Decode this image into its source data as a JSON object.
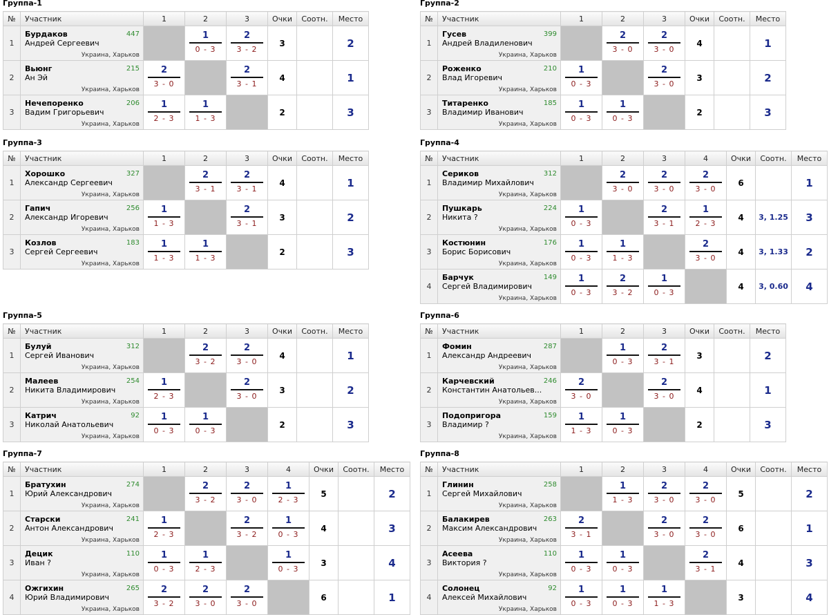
{
  "header": {
    "num": "№",
    "participant": "Участник",
    "points": "Очки",
    "ratio": "Соотн.",
    "place": "Место"
  },
  "groups": [
    {
      "title": "Группа-1",
      "cols": [
        "1",
        "2",
        "3"
      ],
      "players": [
        {
          "no": "1",
          "last": "Бурдаков",
          "first": "Андрей Сергеевич",
          "rating": "447",
          "city": "Украина, Харьков",
          "scores": [
            null,
            [
              "1",
              "0 - 3"
            ],
            [
              "2",
              "3 - 2"
            ]
          ],
          "points": "3",
          "tie": "",
          "place": "2"
        },
        {
          "no": "2",
          "last": "Вьюнг",
          "first": "Ан Эй",
          "rating": "215",
          "city": "Украина, Харьков",
          "scores": [
            [
              "2",
              "3 - 0"
            ],
            null,
            [
              "2",
              "3 - 1"
            ]
          ],
          "points": "4",
          "tie": "",
          "place": "1"
        },
        {
          "no": "3",
          "last": "Нечепоренко",
          "first": "Вадим Григорьевич",
          "rating": "206",
          "city": "Украина, Харьков",
          "scores": [
            [
              "1",
              "2 - 3"
            ],
            [
              "1",
              "1 - 3"
            ],
            null
          ],
          "points": "2",
          "tie": "",
          "place": "3"
        }
      ]
    },
    {
      "title": "Группа-2",
      "cols": [
        "1",
        "2",
        "3"
      ],
      "players": [
        {
          "no": "1",
          "last": "Гусев",
          "first": "Андрей Владиленович",
          "rating": "399",
          "city": "Украина, Харьков",
          "scores": [
            null,
            [
              "2",
              "3 - 0"
            ],
            [
              "2",
              "3 - 0"
            ]
          ],
          "points": "4",
          "tie": "",
          "place": "1"
        },
        {
          "no": "2",
          "last": "Роженко",
          "first": "Влад Игоревич",
          "rating": "210",
          "city": "Украина, Харьков",
          "scores": [
            [
              "1",
              "0 - 3"
            ],
            null,
            [
              "2",
              "3 - 0"
            ]
          ],
          "points": "3",
          "tie": "",
          "place": "2"
        },
        {
          "no": "3",
          "last": "Титаренко",
          "first": "Владимир Иванович",
          "rating": "185",
          "city": "Украина, Харьков",
          "scores": [
            [
              "1",
              "0 - 3"
            ],
            [
              "1",
              "0 - 3"
            ],
            null
          ],
          "points": "2",
          "tie": "",
          "place": "3"
        }
      ]
    },
    {
      "title": "Группа-3",
      "cols": [
        "1",
        "2",
        "3"
      ],
      "players": [
        {
          "no": "1",
          "last": "Хорошко",
          "first": "Александр Сергеевич",
          "rating": "327",
          "city": "Украина, Харьков",
          "scores": [
            null,
            [
              "2",
              "3 - 1"
            ],
            [
              "2",
              "3 - 1"
            ]
          ],
          "points": "4",
          "tie": "",
          "place": "1"
        },
        {
          "no": "2",
          "last": "Гапич",
          "first": "Александр Игоревич",
          "rating": "256",
          "city": "Украина, Харьков",
          "scores": [
            [
              "1",
              "1 - 3"
            ],
            null,
            [
              "2",
              "3 - 1"
            ]
          ],
          "points": "3",
          "tie": "",
          "place": "2"
        },
        {
          "no": "3",
          "last": "Козлов",
          "first": "Сергей Сергеевич",
          "rating": "183",
          "city": "Украина, Харьков",
          "scores": [
            [
              "1",
              "1 - 3"
            ],
            [
              "1",
              "1 - 3"
            ],
            null
          ],
          "points": "2",
          "tie": "",
          "place": "3"
        }
      ]
    },
    {
      "title": "Группа-4",
      "cols": [
        "1",
        "2",
        "3",
        "4"
      ],
      "players": [
        {
          "no": "1",
          "last": "Сериков",
          "first": "Владимир Михайлович",
          "rating": "312",
          "city": "Украина, Харьков",
          "scores": [
            null,
            [
              "2",
              "3 - 0"
            ],
            [
              "2",
              "3 - 0"
            ],
            [
              "2",
              "3 - 0"
            ]
          ],
          "points": "6",
          "tie": "",
          "place": "1"
        },
        {
          "no": "2",
          "last": "Пушкарь",
          "first": "Никита ?",
          "rating": "224",
          "city": "Украина, Харьков",
          "scores": [
            [
              "1",
              "0 - 3"
            ],
            null,
            [
              "2",
              "3 - 1"
            ],
            [
              "1",
              "2 - 3"
            ]
          ],
          "points": "4",
          "tie": "3, 1.25",
          "place": "3"
        },
        {
          "no": "3",
          "last": "Костюнин",
          "first": "Борис Борисович",
          "rating": "176",
          "city": "Украина, Харьков",
          "scores": [
            [
              "1",
              "0 - 3"
            ],
            [
              "1",
              "1 - 3"
            ],
            null,
            [
              "2",
              "3 - 0"
            ]
          ],
          "points": "4",
          "tie": "3, 1.33",
          "place": "2"
        },
        {
          "no": "4",
          "last": "Барчук",
          "first": "Сергей Владимирович",
          "rating": "149",
          "city": "Украина, Харьков",
          "scores": [
            [
              "1",
              "0 - 3"
            ],
            [
              "2",
              "3 - 2"
            ],
            [
              "1",
              "0 - 3"
            ],
            null
          ],
          "points": "4",
          "tie": "3, 0.60",
          "place": "4"
        }
      ]
    },
    {
      "title": "Группа-5",
      "cols": [
        "1",
        "2",
        "3"
      ],
      "players": [
        {
          "no": "1",
          "last": "Булуй",
          "first": "Сергей Иванович",
          "rating": "312",
          "city": "Украина, Харьков",
          "scores": [
            null,
            [
              "2",
              "3 - 2"
            ],
            [
              "2",
              "3 - 0"
            ]
          ],
          "points": "4",
          "tie": "",
          "place": "1"
        },
        {
          "no": "2",
          "last": "Малеев",
          "first": "Никита Владимирович",
          "rating": "254",
          "city": "Украина, Харьков",
          "scores": [
            [
              "1",
              "2 - 3"
            ],
            null,
            [
              "2",
              "3 - 0"
            ]
          ],
          "points": "3",
          "tie": "",
          "place": "2"
        },
        {
          "no": "3",
          "last": "Катрич",
          "first": "Николай Анатольевич",
          "rating": "92",
          "city": "Украина, Харьков",
          "scores": [
            [
              "1",
              "0 - 3"
            ],
            [
              "1",
              "0 - 3"
            ],
            null
          ],
          "points": "2",
          "tie": "",
          "place": "3"
        }
      ]
    },
    {
      "title": "Группа-6",
      "cols": [
        "1",
        "2",
        "3"
      ],
      "players": [
        {
          "no": "1",
          "last": "Фомин",
          "first": "Александр Андреевич",
          "rating": "287",
          "city": "Украина, Харьков",
          "scores": [
            null,
            [
              "1",
              "0 - 3"
            ],
            [
              "2",
              "3 - 1"
            ]
          ],
          "points": "3",
          "tie": "",
          "place": "2"
        },
        {
          "no": "2",
          "last": "Карчевский",
          "first": "Константин Анатольев...",
          "rating": "246",
          "city": "Украина, Харьков",
          "scores": [
            [
              "2",
              "3 - 0"
            ],
            null,
            [
              "2",
              "3 - 0"
            ]
          ],
          "points": "4",
          "tie": "",
          "place": "1"
        },
        {
          "no": "3",
          "last": "Подопригора",
          "first": "Владимир ?",
          "rating": "159",
          "city": "Украина, Харьков",
          "scores": [
            [
              "1",
              "1 - 3"
            ],
            [
              "1",
              "0 - 3"
            ],
            null
          ],
          "points": "2",
          "tie": "",
          "place": "3"
        }
      ]
    },
    {
      "title": "Группа-7",
      "cols": [
        "1",
        "2",
        "3",
        "4"
      ],
      "players": [
        {
          "no": "1",
          "last": "Братухин",
          "first": "Юрий Александрович",
          "rating": "274",
          "city": "Украина, Харьков",
          "scores": [
            null,
            [
              "2",
              "3 - 2"
            ],
            [
              "2",
              "3 - 0"
            ],
            [
              "1",
              "2 - 3"
            ]
          ],
          "points": "5",
          "tie": "",
          "place": "2"
        },
        {
          "no": "2",
          "last": "Старски",
          "first": "Антон Александрович",
          "rating": "241",
          "city": "Украина, Харьков",
          "scores": [
            [
              "1",
              "2 - 3"
            ],
            null,
            [
              "2",
              "3 - 2"
            ],
            [
              "1",
              "0 - 3"
            ]
          ],
          "points": "4",
          "tie": "",
          "place": "3"
        },
        {
          "no": "3",
          "last": "Децик",
          "first": "Иван ?",
          "rating": "110",
          "city": "Украина, Харьков",
          "scores": [
            [
              "1",
              "0 - 3"
            ],
            [
              "1",
              "2 - 3"
            ],
            null,
            [
              "1",
              "0 - 3"
            ]
          ],
          "points": "3",
          "tie": "",
          "place": "4"
        },
        {
          "no": "4",
          "last": "Ожгихин",
          "first": "Юрий Владимирович",
          "rating": "265",
          "city": "Украина, Харьков",
          "scores": [
            [
              "2",
              "3 - 2"
            ],
            [
              "2",
              "3 - 0"
            ],
            [
              "2",
              "3 - 0"
            ],
            null
          ],
          "points": "6",
          "tie": "",
          "place": "1"
        }
      ]
    },
    {
      "title": "Группа-8",
      "cols": [
        "1",
        "2",
        "3",
        "4"
      ],
      "players": [
        {
          "no": "1",
          "last": "Глинин",
          "first": "Сергей Михайлович",
          "rating": "258",
          "city": "Украина, Харьков",
          "scores": [
            null,
            [
              "1",
              "1 - 3"
            ],
            [
              "2",
              "3 - 0"
            ],
            [
              "2",
              "3 - 0"
            ]
          ],
          "points": "5",
          "tie": "",
          "place": "2"
        },
        {
          "no": "2",
          "last": "Балакирев",
          "first": "Максим Александрович",
          "rating": "263",
          "city": "Украина, Харьков",
          "scores": [
            [
              "2",
              "3 - 1"
            ],
            null,
            [
              "2",
              "3 - 0"
            ],
            [
              "2",
              "3 - 0"
            ]
          ],
          "points": "6",
          "tie": "",
          "place": "1"
        },
        {
          "no": "3",
          "last": "Асеева",
          "first": "Виктория ?",
          "rating": "110",
          "city": "Украина, Харьков",
          "scores": [
            [
              "1",
              "0 - 3"
            ],
            [
              "1",
              "0 - 3"
            ],
            null,
            [
              "2",
              "3 - 1"
            ]
          ],
          "points": "4",
          "tie": "",
          "place": "3"
        },
        {
          "no": "4",
          "last": "Солонец",
          "first": "Алексей Михайлович",
          "rating": "92",
          "city": "Украина, Харьков",
          "scores": [
            [
              "1",
              "0 - 3"
            ],
            [
              "1",
              "0 - 3"
            ],
            [
              "1",
              "1 - 3"
            ],
            null
          ],
          "points": "3",
          "tie": "",
          "place": "4"
        }
      ]
    }
  ]
}
